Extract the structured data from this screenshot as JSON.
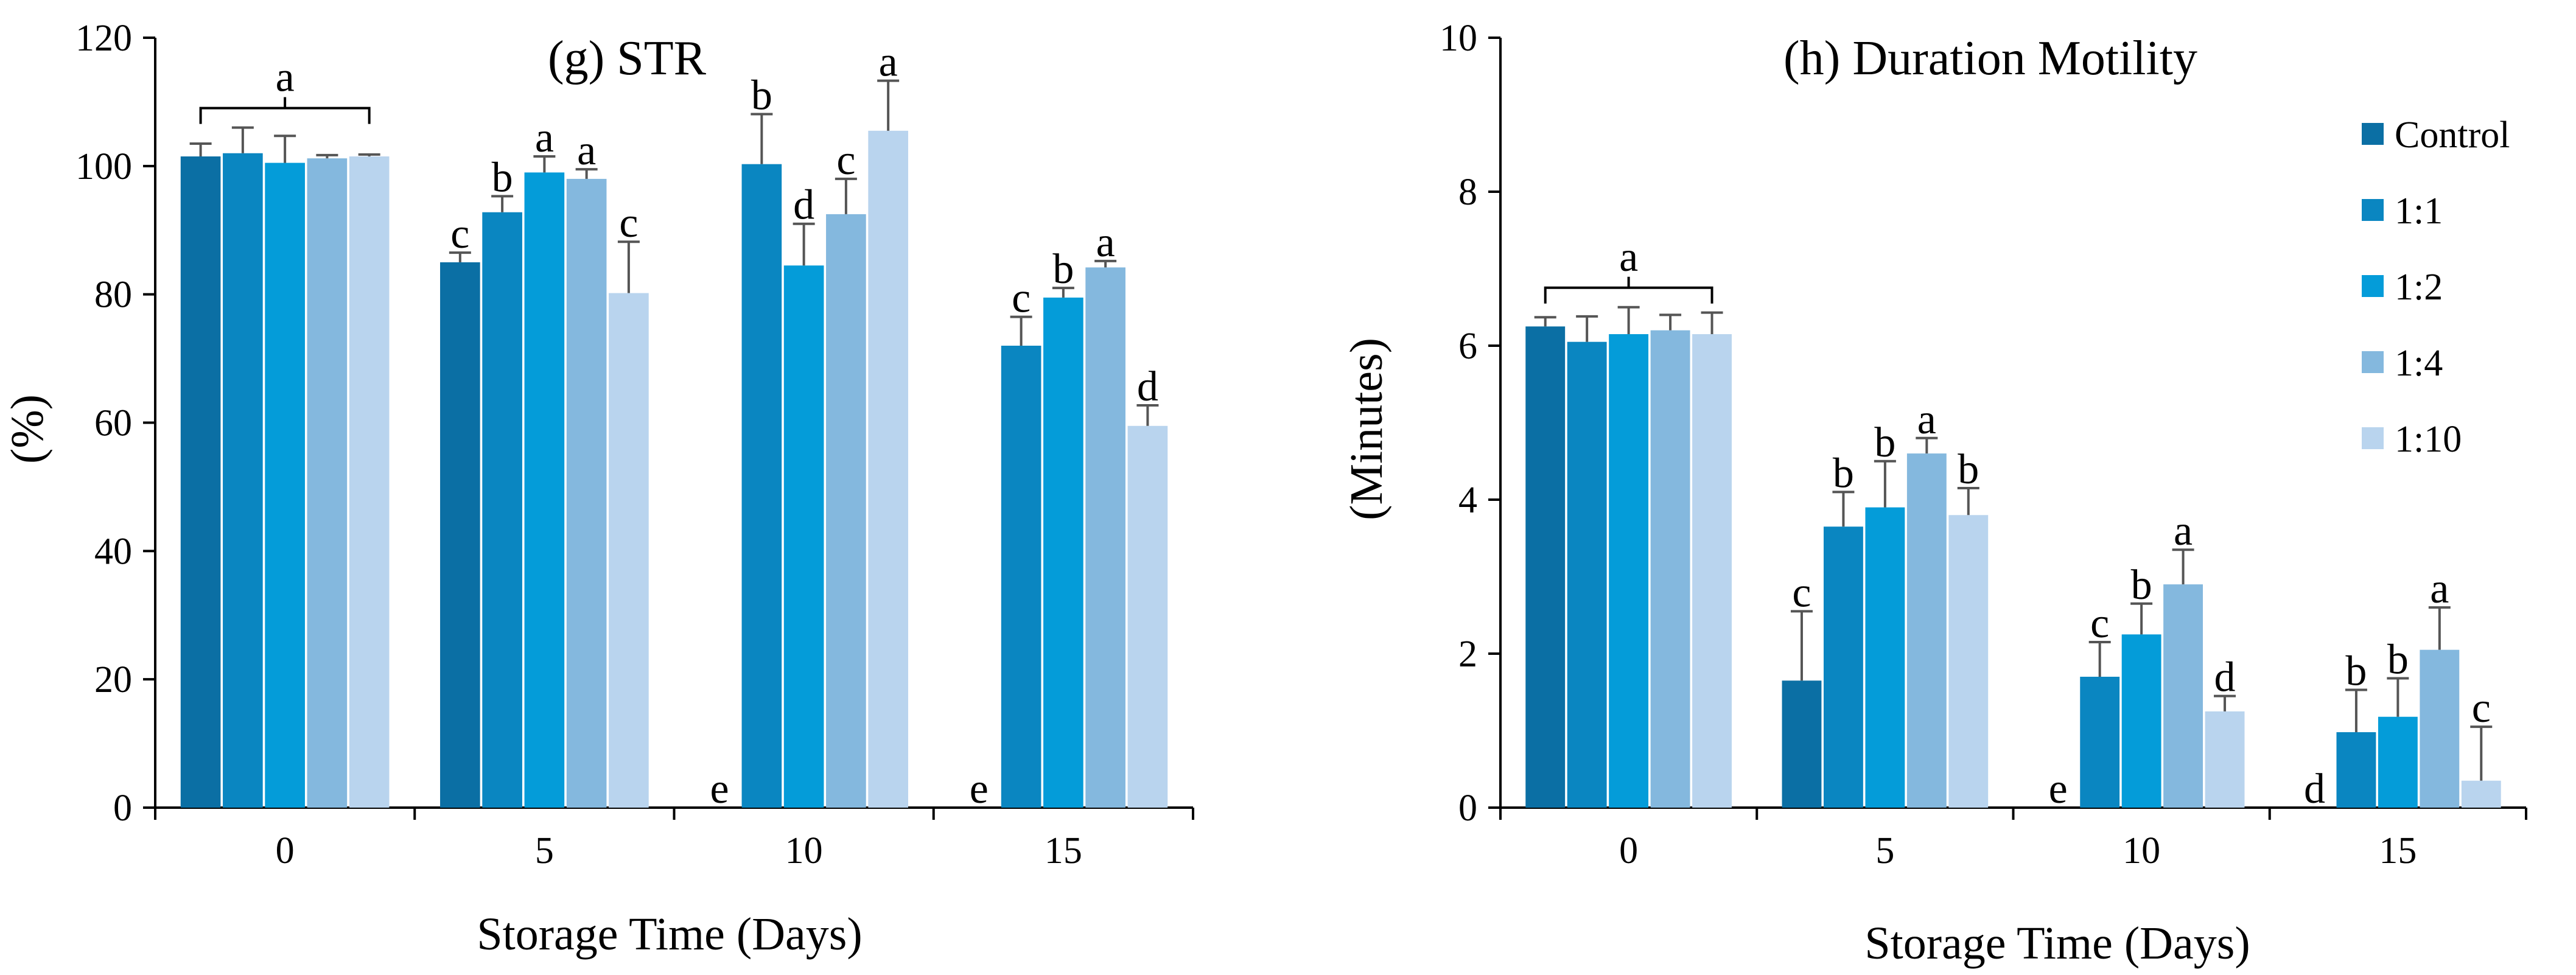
{
  "chart_data": [
    {
      "type": "bar",
      "title": "(g) STR",
      "xlabel": "Storage Time (Days)",
      "ylabel": "(%)",
      "ylim": [
        0,
        120
      ],
      "yticks": [
        "0",
        "20",
        "40",
        "60",
        "80",
        "100",
        "120"
      ],
      "categories": [
        "0",
        "5",
        "10",
        "15"
      ],
      "grid": false,
      "series": [
        {
          "name": "Control",
          "color": "#0b6fa4",
          "values": [
            101.5,
            85,
            null,
            null
          ],
          "errors": [
            2,
            1.5,
            null,
            null
          ],
          "sig": [
            "",
            "c",
            "e",
            "e"
          ]
        },
        {
          "name": "1:1",
          "color": "#0a86c1",
          "values": [
            102,
            92.8,
            100.3,
            72
          ],
          "errors": [
            4,
            2.5,
            7.8,
            4.5
          ],
          "sig": [
            "",
            "b",
            "b",
            "c"
          ]
        },
        {
          "name": "1:2",
          "color": "#049cd9",
          "values": [
            100.5,
            99,
            84.5,
            79.5
          ],
          "errors": [
            4.2,
            2.5,
            6.5,
            1.5
          ],
          "sig": [
            "",
            "a",
            "d",
            "b"
          ]
        },
        {
          "name": "1:4",
          "color": "#84b8de",
          "values": [
            101.2,
            98,
            92.5,
            84.2
          ],
          "errors": [
            0.5,
            1.5,
            5.5,
            1
          ],
          "sig": [
            "",
            "a",
            "c",
            "a"
          ]
        },
        {
          "name": "1:10",
          "color": "#b9d4ee",
          "values": [
            101.5,
            80.2,
            105.5,
            59.5
          ],
          "errors": [
            0.3,
            8,
            7.8,
            3.2
          ],
          "sig": [
            "",
            "c",
            "a",
            "d"
          ]
        }
      ],
      "group_sig": [
        {
          "category": "0",
          "label": "a"
        }
      ]
    },
    {
      "type": "bar",
      "title": "(h) Duration Motility",
      "xlabel": "Storage Time (Days)",
      "ylabel": "(Minutes)",
      "ylim": [
        0,
        10
      ],
      "yticks": [
        "0",
        "2",
        "4",
        "6",
        "8",
        "10"
      ],
      "categories": [
        "0",
        "5",
        "10",
        "15"
      ],
      "grid": false,
      "legend_position": "top-right",
      "series": [
        {
          "name": "Control",
          "color": "#0b6fa4",
          "values": [
            6.25,
            1.65,
            null,
            null
          ],
          "errors": [
            0.12,
            0.9,
            null,
            null
          ],
          "sig": [
            "",
            "c",
            "e",
            "d"
          ]
        },
        {
          "name": "1:1",
          "color": "#0a86c1",
          "values": [
            6.05,
            3.65,
            1.7,
            0.98
          ],
          "errors": [
            0.33,
            0.45,
            0.45,
            0.55
          ],
          "sig": [
            "",
            "b",
            "c",
            "b"
          ]
        },
        {
          "name": "1:2",
          "color": "#049cd9",
          "values": [
            6.15,
            3.9,
            2.25,
            1.18
          ],
          "errors": [
            0.35,
            0.6,
            0.4,
            0.5
          ],
          "sig": [
            "",
            "b",
            "b",
            "b"
          ]
        },
        {
          "name": "1:4",
          "color": "#84b8de",
          "values": [
            6.2,
            4.6,
            2.9,
            2.05
          ],
          "errors": [
            0.2,
            0.2,
            0.45,
            0.55
          ],
          "sig": [
            "",
            "a",
            "a",
            "a"
          ]
        },
        {
          "name": "1:10",
          "color": "#b9d4ee",
          "values": [
            6.15,
            3.8,
            1.25,
            0.35
          ],
          "errors": [
            0.28,
            0.35,
            0.2,
            0.7
          ],
          "sig": [
            "",
            "b",
            "d",
            "c"
          ]
        }
      ],
      "group_sig": [
        {
          "category": "0",
          "label": "a"
        }
      ]
    }
  ]
}
